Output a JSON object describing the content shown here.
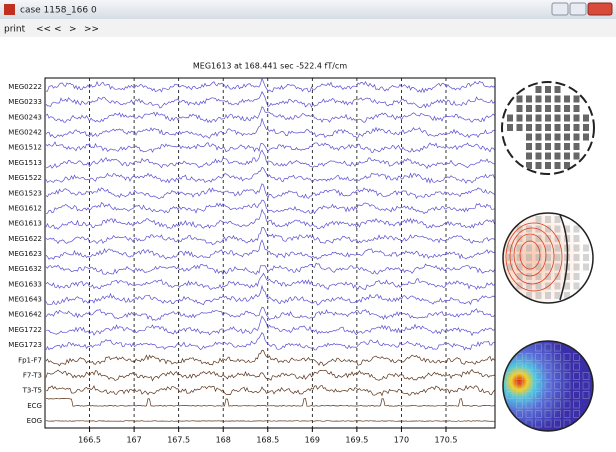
{
  "window": {
    "title": "case 1158_166 0"
  },
  "toolbar": {
    "items": [
      "print",
      "<<",
      "<",
      ">",
      ">>"
    ]
  },
  "plot": {
    "title": "MEG1613 at 168.441 sec -522.4 fT/cm",
    "channels": [
      "MEG0222",
      "MEG0233",
      "MEG0243",
      "MEG0242",
      "MEG1512",
      "MEG1513",
      "MEG1522",
      "MEG1523",
      "MEG1612",
      "MEG1613",
      "MEG1622",
      "MEG1623",
      "MEG1632",
      "MEG1633",
      "MEG1643",
      "MEG1642",
      "MEG1722",
      "MEG1723",
      "Fp1-F7",
      "F7-T3",
      "T3-T5",
      "ECG",
      "EOG"
    ],
    "xlim": [
      166.0,
      171.05
    ],
    "xticks": [
      166.5,
      167,
      167.5,
      168,
      168.5,
      169,
      169.5,
      170,
      170.5
    ]
  }
}
